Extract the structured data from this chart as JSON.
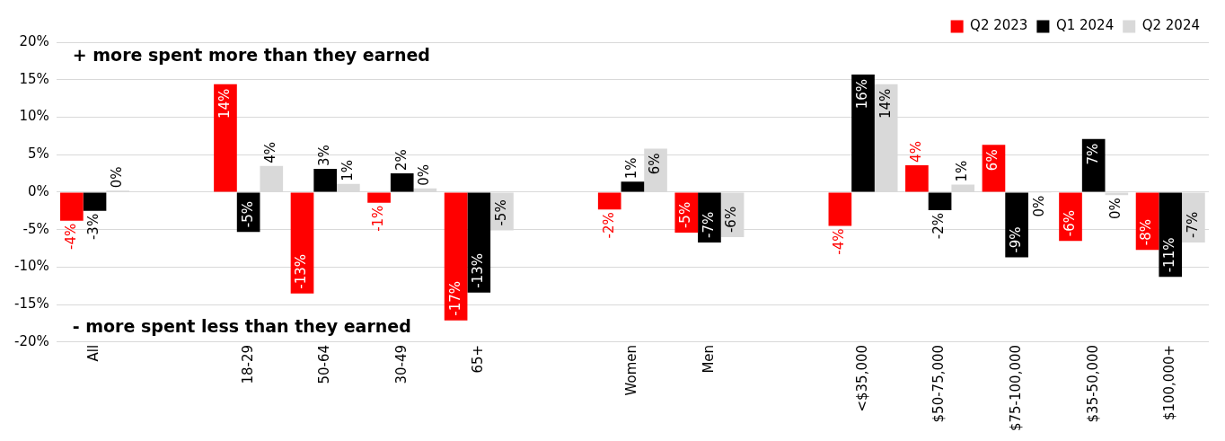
{
  "chart_data": {
    "type": "bar",
    "categories": [
      "All",
      null,
      "18-29",
      "50-64",
      "30-49",
      "65+",
      null,
      "Women",
      "Men",
      null,
      "<$35,000",
      "$50-75,000",
      "$75-100,000",
      "$35-50,000",
      "$100,000+"
    ],
    "series": [
      {
        "name": "Q2 2023",
        "color": "#ff0000",
        "values": [
          -3.8,
          null,
          14.4,
          -13.5,
          -1.4,
          -17.1,
          null,
          -2.3,
          -5.4,
          null,
          -4.5,
          3.6,
          6.3,
          -6.5,
          -7.7
        ],
        "value_labels": [
          "-4%",
          null,
          "14%",
          "-13%",
          "-1%",
          "-17%",
          null,
          "-2%",
          "-5%",
          null,
          "-4%",
          "4%",
          "6%",
          "-6%",
          "-8%"
        ]
      },
      {
        "name": "Q1 2024",
        "color": "#000000",
        "values": [
          -2.5,
          null,
          -5.3,
          3.1,
          2.5,
          -13.4,
          null,
          1.4,
          -6.7,
          null,
          15.7,
          -2.4,
          -8.7,
          7.1,
          -11.3
        ],
        "value_labels": [
          "-3%",
          null,
          "-5%",
          "3%",
          "2%",
          "-13%",
          null,
          "1%",
          "-7%",
          null,
          "16%",
          "-2%",
          "-9%",
          "7%",
          "-11%"
        ]
      },
      {
        "name": "Q2 2024",
        "color": "#d9d9d9",
        "values": [
          0.2,
          null,
          3.5,
          1.1,
          0.5,
          -5.1,
          null,
          5.8,
          -6.0,
          null,
          14.4,
          1.0,
          -0.1,
          -0.4,
          -6.7
        ],
        "value_labels": [
          "0%",
          null,
          "4%",
          "1%",
          "0%",
          "-5%",
          null,
          "6%",
          "-6%",
          null,
          "14%",
          "1%",
          "0%",
          "0%",
          "-7%"
        ]
      }
    ],
    "ylim": [
      -20,
      20
    ],
    "yticks": [
      {
        "value": -20,
        "label": "-20%"
      },
      {
        "value": -15,
        "label": "-15%"
      },
      {
        "value": -10,
        "label": "-10%"
      },
      {
        "value": -5,
        "label": "-5%"
      },
      {
        "value": 0,
        "label": "0%"
      },
      {
        "value": 5,
        "label": "5%"
      },
      {
        "value": 10,
        "label": "10%"
      },
      {
        "value": 15,
        "label": "15%"
      },
      {
        "value": 20,
        "label": "20%"
      }
    ],
    "grid": "y",
    "legend": "top right",
    "annotations": [
      "+ more spent more than they earned",
      "- more spent less than they earned"
    ]
  }
}
